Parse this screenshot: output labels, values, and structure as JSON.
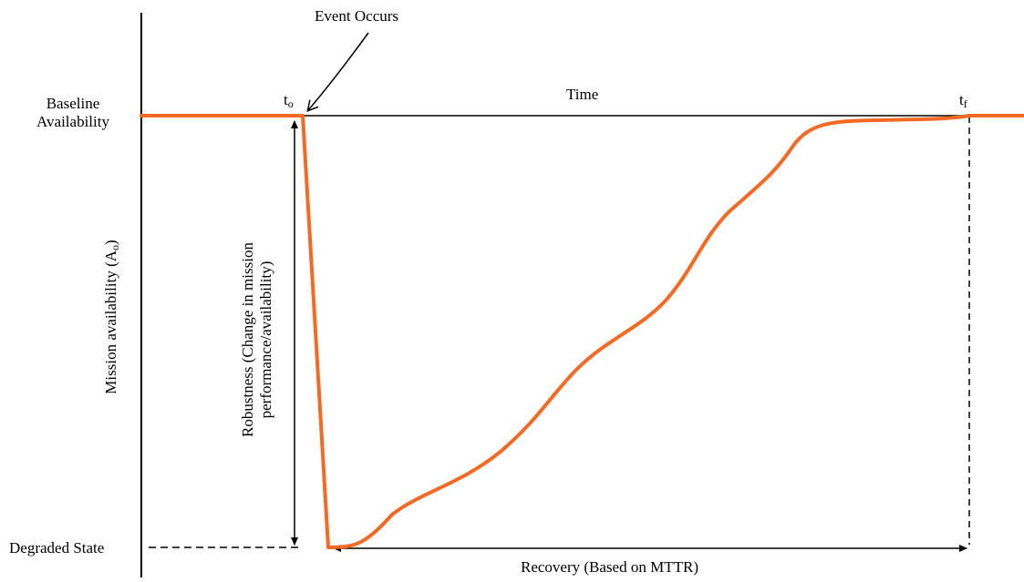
{
  "labels": {
    "event_occurs": "Event Occurs",
    "baseline_line1": "Baseline",
    "baseline_line2": "Availability",
    "t_start": "t",
    "t_start_sub": "o",
    "t_end": "t",
    "t_end_sub": "f",
    "time": "Time",
    "y_axis_main": "Mission availability (A",
    "y_axis_sub": "o",
    "y_axis_close": ")",
    "robustness_line1": "Robustness (Change in mission",
    "robustness_line2": "performance/availability)",
    "degraded_state": "Degraded State",
    "recovery": "Recovery (Based on MTTR)"
  },
  "colors": {
    "curve": "#f26a24",
    "axis": "#000000"
  }
}
